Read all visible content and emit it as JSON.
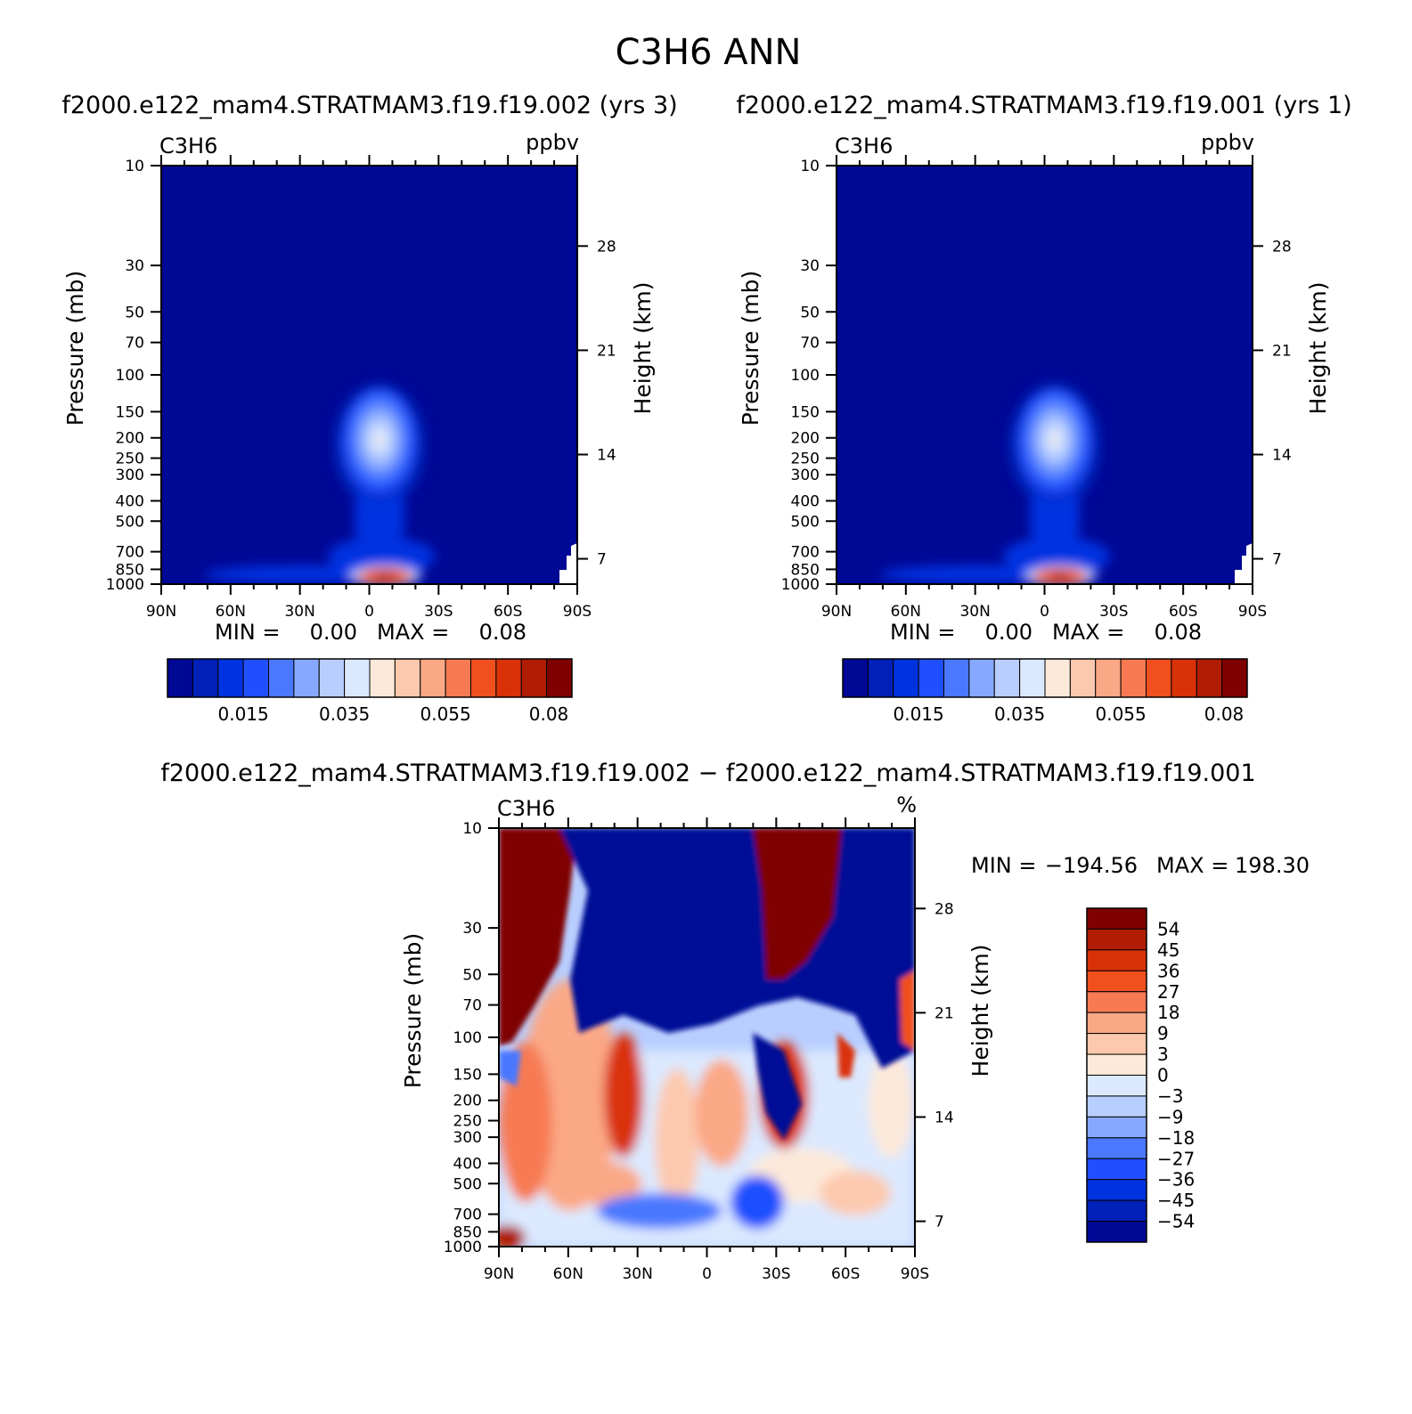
{
  "figure_title": "C3H6 ANN",
  "chart_data": [
    {
      "type": "heatmap",
      "subtitle": "f2000.e122_mam4.STRATMAM3.f19.f19.002 (yrs 3)",
      "variable_label": "C3H6",
      "units_label": "ppbv",
      "ylabel": "Pressure (mb)",
      "y2label": "Height (km)",
      "x_ticks": [
        "90N",
        "60N",
        "30N",
        "0",
        "30S",
        "60S",
        "90S"
      ],
      "x_values": [
        90,
        60,
        30,
        0,
        -30,
        -60,
        -90
      ],
      "y_ticks": [
        "10",
        "30",
        "50",
        "70",
        "100",
        "150",
        "200",
        "250",
        "300",
        "400",
        "500",
        "700",
        "850",
        "1000"
      ],
      "y_values": [
        10,
        30,
        50,
        70,
        100,
        150,
        200,
        250,
        300,
        400,
        500,
        700,
        850,
        1000
      ],
      "y2_ticks": [
        "28",
        "21",
        "14",
        "7"
      ],
      "y2_values": [
        28,
        21,
        14,
        7
      ],
      "stats": {
        "min_label": "MIN =",
        "min_value": "0.00",
        "max_label": "MAX =",
        "max_value": "0.08"
      },
      "colorbar_labels": [
        "0.015",
        "0.035",
        "0.055",
        "0.08"
      ],
      "colorbar_colors": [
        "#000896",
        "#0020b8",
        "#0033e0",
        "#1f4fff",
        "#4a78ff",
        "#86a8ff",
        "#b8ceff",
        "#dbe9ff",
        "#fde9d9",
        "#fdc9ae",
        "#fba886",
        "#f77a52",
        "#f04f1e",
        "#d93208",
        "#b01d04",
        "#7f0000"
      ]
    },
    {
      "type": "heatmap",
      "subtitle": "f2000.e122_mam4.STRATMAM3.f19.f19.001 (yrs 1)",
      "variable_label": "C3H6",
      "units_label": "ppbv",
      "ylabel": "Pressure (mb)",
      "y2label": "Height (km)",
      "x_ticks": [
        "90N",
        "60N",
        "30N",
        "0",
        "30S",
        "60S",
        "90S"
      ],
      "x_values": [
        90,
        60,
        30,
        0,
        -30,
        -60,
        -90
      ],
      "y_ticks": [
        "10",
        "30",
        "50",
        "70",
        "100",
        "150",
        "200",
        "250",
        "300",
        "400",
        "500",
        "700",
        "850",
        "1000"
      ],
      "y_values": [
        10,
        30,
        50,
        70,
        100,
        150,
        200,
        250,
        300,
        400,
        500,
        700,
        850,
        1000
      ],
      "y2_ticks": [
        "28",
        "21",
        "14",
        "7"
      ],
      "y2_values": [
        28,
        21,
        14,
        7
      ],
      "stats": {
        "min_label": "MIN =",
        "min_value": "0.00",
        "max_label": "MAX =",
        "max_value": "0.08"
      },
      "colorbar_labels": [
        "0.015",
        "0.035",
        "0.055",
        "0.08"
      ],
      "colorbar_colors": [
        "#000896",
        "#0020b8",
        "#0033e0",
        "#1f4fff",
        "#4a78ff",
        "#86a8ff",
        "#b8ceff",
        "#dbe9ff",
        "#fde9d9",
        "#fdc9ae",
        "#fba886",
        "#f77a52",
        "#f04f1e",
        "#d93208",
        "#b01d04",
        "#7f0000"
      ]
    },
    {
      "type": "heatmap",
      "subtitle": "f2000.e122_mam4.STRATMAM3.f19.f19.002 − f2000.e122_mam4.STRATMAM3.f19.f19.001",
      "variable_label": "C3H6",
      "units_label": "%",
      "ylabel": "Pressure (mb)",
      "y2label": "Height (km)",
      "x_ticks": [
        "90N",
        "60N",
        "30N",
        "0",
        "30S",
        "60S",
        "90S"
      ],
      "x_values": [
        90,
        60,
        30,
        0,
        -30,
        -60,
        -90
      ],
      "y_ticks": [
        "10",
        "30",
        "50",
        "70",
        "100",
        "150",
        "200",
        "250",
        "300",
        "400",
        "500",
        "700",
        "850",
        "1000"
      ],
      "y_values": [
        10,
        30,
        50,
        70,
        100,
        150,
        200,
        250,
        300,
        400,
        500,
        700,
        850,
        1000
      ],
      "y2_ticks": [
        "28",
        "21",
        "14",
        "7"
      ],
      "y2_values": [
        28,
        21,
        14,
        7
      ],
      "stats": {
        "min_label": "MIN =",
        "min_value": "−194.56",
        "max_label": "MAX =",
        "max_value": "198.30"
      },
      "colorbar_labels": [
        "54",
        "45",
        "36",
        "27",
        "18",
        "9",
        "3",
        "0",
        "−3",
        "−9",
        "−18",
        "−27",
        "−36",
        "−45",
        "−54"
      ],
      "colorbar_colors": [
        "#7f0000",
        "#b01d04",
        "#d93208",
        "#f04f1e",
        "#f77a52",
        "#fba886",
        "#fdc9ae",
        "#fde9d9",
        "#dbe9ff",
        "#b8ceff",
        "#86a8ff",
        "#4a78ff",
        "#1f4fff",
        "#0033e0",
        "#0020b8",
        "#000896"
      ]
    }
  ]
}
